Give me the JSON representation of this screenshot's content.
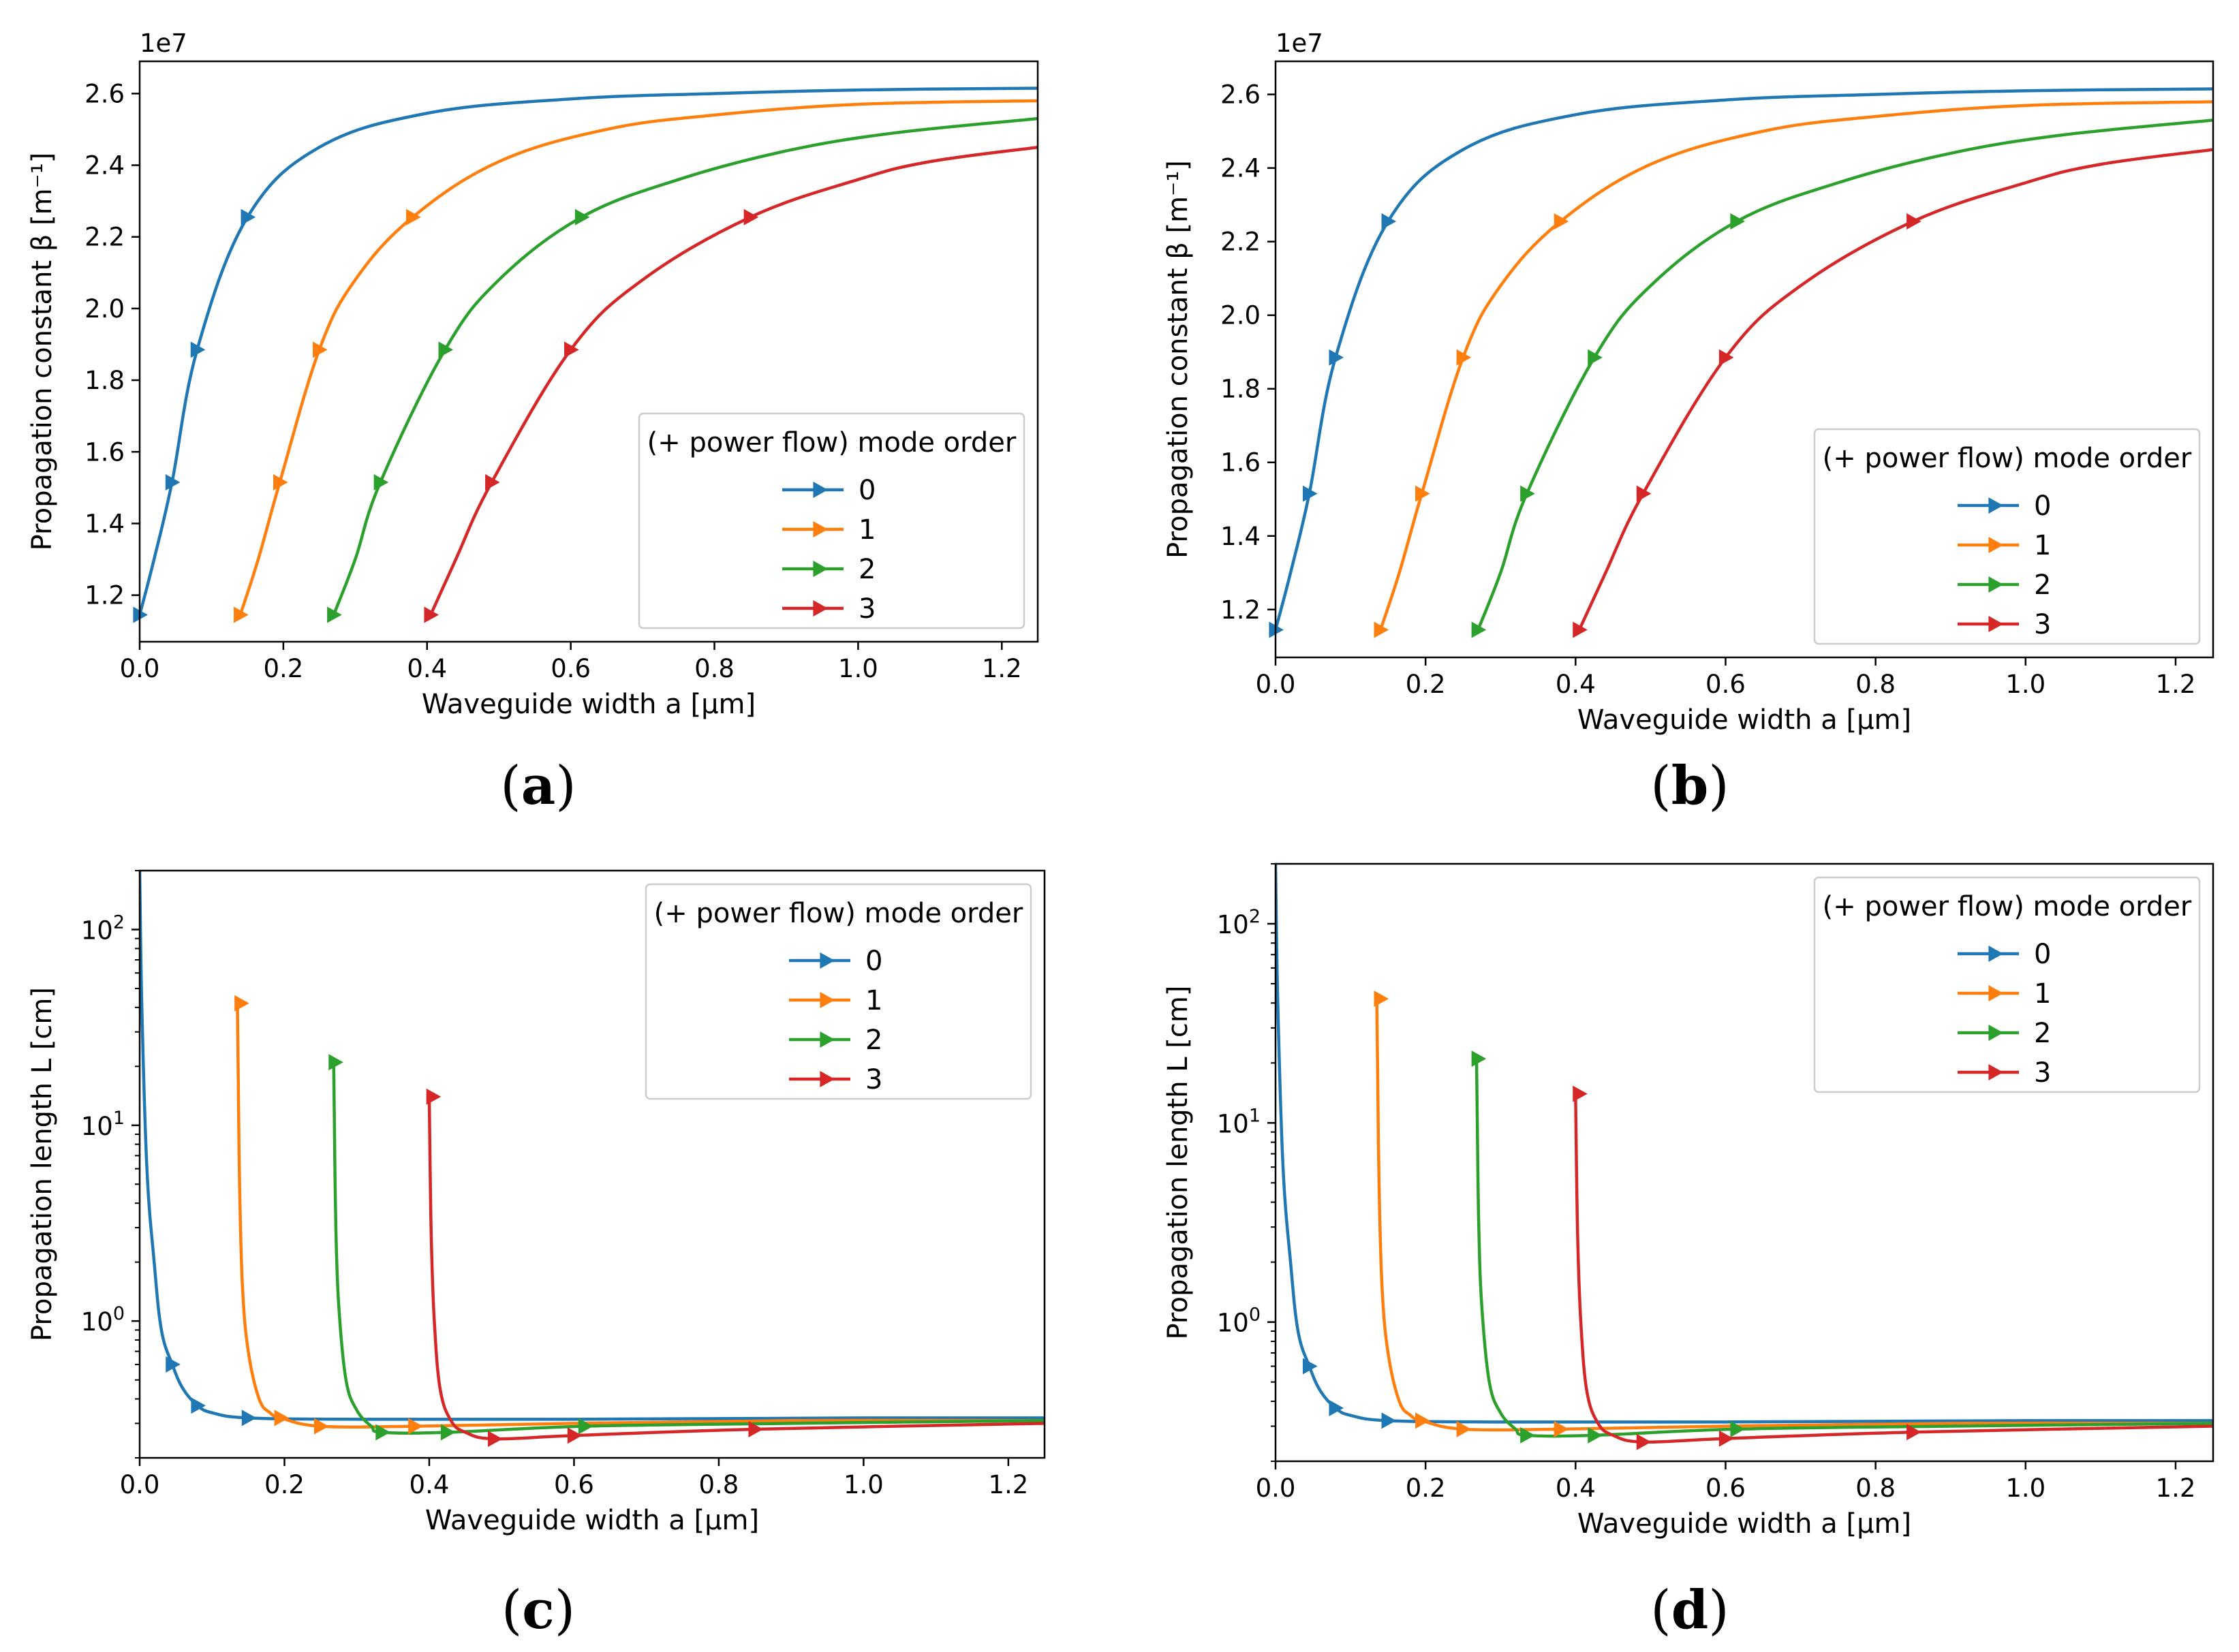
{
  "figure": {
    "panel_labels": [
      "(a)",
      "(b)",
      "(c)",
      "(d)"
    ],
    "colors": {
      "mode_0": "#1f77b4",
      "mode_1": "#ff7f0e",
      "mode_2": "#2ca02c",
      "mode_3": "#d62728"
    }
  },
  "chart_data": [
    {
      "panel": "(a)",
      "type": "line",
      "title": "",
      "xlabel": "Waveguide width a [μm]",
      "ylabel": "Propagation constant β [m⁻¹]",
      "y_offset_label": "1e7",
      "yscale": "linear",
      "xlim": [
        0.0,
        1.25
      ],
      "ylim": [
        1.07,
        2.69
      ],
      "xticks": [
        "0.0",
        "0.2",
        "0.4",
        "0.6",
        "0.8",
        "1.0",
        "1.2"
      ],
      "yticks": [
        "1.2",
        "1.4",
        "1.6",
        "1.8",
        "2.0",
        "2.2",
        "2.4",
        "2.6"
      ],
      "legend": {
        "title": "(+ power flow) mode order",
        "entries": [
          "0",
          "1",
          "2",
          "3"
        ],
        "position": "lower-right"
      },
      "series": [
        {
          "name": "0",
          "x": [
            0.0,
            0.02,
            0.045,
            0.08,
            0.15,
            0.25,
            0.4,
            0.6,
            0.8,
            1.0,
            1.25
          ],
          "values": [
            1.145,
            1.3,
            1.515,
            1.885,
            2.255,
            2.45,
            2.545,
            2.585,
            2.6,
            2.61,
            2.615
          ]
        },
        {
          "name": "1",
          "x": [
            0.14,
            0.165,
            0.195,
            0.25,
            0.3,
            0.38,
            0.5,
            0.65,
            0.8,
            1.0,
            1.25
          ],
          "values": [
            1.145,
            1.3,
            1.515,
            1.885,
            2.08,
            2.255,
            2.41,
            2.5,
            2.54,
            2.57,
            2.58
          ]
        },
        {
          "name": "2",
          "x": [
            0.27,
            0.3,
            0.335,
            0.425,
            0.5,
            0.615,
            0.75,
            0.9,
            1.05,
            1.25
          ],
          "values": [
            1.145,
            1.3,
            1.515,
            1.885,
            2.08,
            2.255,
            2.36,
            2.44,
            2.49,
            2.53
          ]
        },
        {
          "name": "3",
          "x": [
            0.405,
            0.44,
            0.49,
            0.6,
            0.7,
            0.85,
            1.0,
            1.1,
            1.25
          ],
          "values": [
            1.145,
            1.3,
            1.515,
            1.885,
            2.08,
            2.255,
            2.36,
            2.41,
            2.45
          ]
        }
      ],
      "markers": [
        {
          "name": "0",
          "x": [
            0.0,
            0.045,
            0.08,
            0.15
          ],
          "values": [
            1.145,
            1.515,
            1.885,
            2.255
          ]
        },
        {
          "name": "1",
          "x": [
            0.14,
            0.195,
            0.25,
            0.38
          ],
          "values": [
            1.145,
            1.515,
            1.885,
            2.255
          ]
        },
        {
          "name": "2",
          "x": [
            0.27,
            0.335,
            0.425,
            0.615
          ],
          "values": [
            1.145,
            1.515,
            1.885,
            2.255
          ]
        },
        {
          "name": "3",
          "x": [
            0.405,
            0.49,
            0.6,
            0.85
          ],
          "values": [
            1.145,
            1.515,
            1.885,
            2.255
          ]
        }
      ]
    },
    {
      "panel": "(b)",
      "type": "line",
      "title": "",
      "xlabel": "Waveguide width a [μm]",
      "ylabel": "Propagation constant β [m⁻¹]",
      "y_offset_label": "1e7",
      "yscale": "linear",
      "xlim": [
        0.0,
        1.25
      ],
      "ylim": [
        1.07,
        2.69
      ],
      "xticks": [
        "0.0",
        "0.2",
        "0.4",
        "0.6",
        "0.8",
        "1.0",
        "1.2"
      ],
      "yticks": [
        "1.2",
        "1.4",
        "1.6",
        "1.8",
        "2.0",
        "2.2",
        "2.4",
        "2.6"
      ],
      "legend": {
        "title": "(+ power flow) mode order",
        "entries": [
          "0",
          "1",
          "2",
          "3"
        ],
        "position": "lower-right"
      },
      "series": [
        {
          "name": "0",
          "x": [
            0.0,
            0.02,
            0.045,
            0.08,
            0.15,
            0.25,
            0.4,
            0.6,
            0.8,
            1.0,
            1.25
          ],
          "values": [
            1.145,
            1.3,
            1.515,
            1.885,
            2.255,
            2.45,
            2.545,
            2.585,
            2.6,
            2.61,
            2.615
          ]
        },
        {
          "name": "1",
          "x": [
            0.14,
            0.165,
            0.195,
            0.25,
            0.3,
            0.38,
            0.5,
            0.65,
            0.8,
            1.0,
            1.25
          ],
          "values": [
            1.145,
            1.3,
            1.515,
            1.885,
            2.08,
            2.255,
            2.41,
            2.5,
            2.54,
            2.57,
            2.58
          ]
        },
        {
          "name": "2",
          "x": [
            0.27,
            0.3,
            0.335,
            0.425,
            0.5,
            0.615,
            0.75,
            0.9,
            1.05,
            1.25
          ],
          "values": [
            1.145,
            1.3,
            1.515,
            1.885,
            2.08,
            2.255,
            2.36,
            2.44,
            2.49,
            2.53
          ]
        },
        {
          "name": "3",
          "x": [
            0.405,
            0.44,
            0.49,
            0.6,
            0.7,
            0.85,
            1.0,
            1.1,
            1.25
          ],
          "values": [
            1.145,
            1.3,
            1.515,
            1.885,
            2.08,
            2.255,
            2.36,
            2.41,
            2.45
          ]
        }
      ],
      "markers": [
        {
          "name": "0",
          "x": [
            0.0,
            0.045,
            0.08,
            0.15
          ],
          "values": [
            1.145,
            1.515,
            1.885,
            2.255
          ]
        },
        {
          "name": "1",
          "x": [
            0.14,
            0.195,
            0.25,
            0.38
          ],
          "values": [
            1.145,
            1.515,
            1.885,
            2.255
          ]
        },
        {
          "name": "2",
          "x": [
            0.27,
            0.335,
            0.425,
            0.615
          ],
          "values": [
            1.145,
            1.515,
            1.885,
            2.255
          ]
        },
        {
          "name": "3",
          "x": [
            0.405,
            0.49,
            0.6,
            0.85
          ],
          "values": [
            1.145,
            1.515,
            1.885,
            2.255
          ]
        }
      ]
    },
    {
      "panel": "(c)",
      "type": "line",
      "title": "",
      "xlabel": "Waveguide width a [μm]",
      "ylabel": "Propagation length L [cm]",
      "yscale": "log",
      "xlim": [
        0.0,
        1.25
      ],
      "ylim": [
        0.2,
        200
      ],
      "xticks": [
        "0.0",
        "0.2",
        "0.4",
        "0.6",
        "0.8",
        "1.0",
        "1.2"
      ],
      "yticks_log": [
        0,
        1,
        2
      ],
      "yticks_base": "10",
      "legend": {
        "title": "(+ power flow) mode order",
        "entries": [
          "0",
          "1",
          "2",
          "3"
        ],
        "position": "upper-right"
      },
      "series": [
        {
          "name": "0",
          "x": [
            0.0,
            0.003,
            0.01,
            0.02,
            0.03,
            0.045,
            0.06,
            0.08,
            0.1,
            0.15,
            0.3,
            0.6,
            1.0,
            1.25
          ],
          "values": [
            200,
            40,
            6,
            2,
            0.9,
            0.6,
            0.45,
            0.37,
            0.34,
            0.32,
            0.315,
            0.315,
            0.32,
            0.32
          ]
        },
        {
          "name": "1",
          "x": [
            0.135,
            0.136,
            0.138,
            0.142,
            0.15,
            0.165,
            0.18,
            0.195,
            0.25,
            0.38,
            0.6,
            0.9,
            1.25
          ],
          "values": [
            42,
            20,
            5,
            1.5,
            0.7,
            0.4,
            0.34,
            0.32,
            0.29,
            0.29,
            0.3,
            0.31,
            0.31
          ]
        },
        {
          "name": "2",
          "x": [
            0.268,
            0.269,
            0.271,
            0.275,
            0.285,
            0.3,
            0.32,
            0.335,
            0.425,
            0.615,
            0.9,
            1.25
          ],
          "values": [
            21,
            10,
            3,
            1.2,
            0.5,
            0.35,
            0.29,
            0.27,
            0.27,
            0.29,
            0.3,
            0.31
          ]
        },
        {
          "name": "3",
          "x": [
            0.4,
            0.401,
            0.403,
            0.407,
            0.415,
            0.43,
            0.45,
            0.49,
            0.6,
            0.85,
            1.25
          ],
          "values": [
            14,
            7,
            2.5,
            1,
            0.45,
            0.31,
            0.27,
            0.25,
            0.26,
            0.28,
            0.3
          ]
        }
      ],
      "markers": [
        {
          "name": "0",
          "x": [
            0.045,
            0.08,
            0.15
          ],
          "values": [
            0.6,
            0.37,
            0.32
          ]
        },
        {
          "name": "1",
          "x": [
            0.14,
            0.195,
            0.25,
            0.38
          ],
          "values": [
            42,
            0.32,
            0.29,
            0.29
          ]
        },
        {
          "name": "2",
          "x": [
            0.27,
            0.335,
            0.425,
            0.615
          ],
          "values": [
            21,
            0.27,
            0.27,
            0.29
          ]
        },
        {
          "name": "3",
          "x": [
            0.405,
            0.49,
            0.6,
            0.85
          ],
          "values": [
            14,
            0.25,
            0.26,
            0.28
          ]
        }
      ]
    },
    {
      "panel": "(d)",
      "type": "line",
      "title": "",
      "xlabel": "Waveguide width a [μm]",
      "ylabel": "Propagation length L [cm]",
      "yscale": "log",
      "xlim": [
        0.0,
        1.25
      ],
      "ylim": [
        0.2,
        200
      ],
      "xticks": [
        "0.0",
        "0.2",
        "0.4",
        "0.6",
        "0.8",
        "1.0",
        "1.2"
      ],
      "yticks_log": [
        0,
        1,
        2
      ],
      "yticks_base": "10",
      "legend": {
        "title": "(+ power flow) mode order",
        "entries": [
          "0",
          "1",
          "2",
          "3"
        ],
        "position": "upper-right"
      },
      "series": [
        {
          "name": "0",
          "x": [
            0.0,
            0.003,
            0.01,
            0.02,
            0.03,
            0.045,
            0.06,
            0.08,
            0.1,
            0.15,
            0.3,
            0.6,
            1.0,
            1.25
          ],
          "values": [
            200,
            40,
            6,
            2,
            0.9,
            0.6,
            0.45,
            0.37,
            0.34,
            0.32,
            0.315,
            0.315,
            0.32,
            0.32
          ]
        },
        {
          "name": "1",
          "x": [
            0.135,
            0.136,
            0.138,
            0.142,
            0.15,
            0.165,
            0.18,
            0.195,
            0.25,
            0.38,
            0.6,
            0.9,
            1.25
          ],
          "values": [
            42,
            20,
            5,
            1.5,
            0.7,
            0.4,
            0.34,
            0.32,
            0.29,
            0.29,
            0.3,
            0.31,
            0.31
          ]
        },
        {
          "name": "2",
          "x": [
            0.268,
            0.269,
            0.271,
            0.275,
            0.285,
            0.3,
            0.32,
            0.335,
            0.425,
            0.615,
            0.9,
            1.25
          ],
          "values": [
            21,
            10,
            3,
            1.2,
            0.5,
            0.35,
            0.29,
            0.27,
            0.27,
            0.29,
            0.3,
            0.31
          ]
        },
        {
          "name": "3",
          "x": [
            0.4,
            0.401,
            0.403,
            0.407,
            0.415,
            0.43,
            0.45,
            0.49,
            0.6,
            0.85,
            1.25
          ],
          "values": [
            14,
            7,
            2.5,
            1,
            0.45,
            0.31,
            0.27,
            0.25,
            0.26,
            0.28,
            0.3
          ]
        }
      ],
      "markers": [
        {
          "name": "0",
          "x": [
            0.045,
            0.08,
            0.15
          ],
          "values": [
            0.6,
            0.37,
            0.32
          ]
        },
        {
          "name": "1",
          "x": [
            0.14,
            0.195,
            0.25,
            0.38
          ],
          "values": [
            42,
            0.32,
            0.29,
            0.29
          ]
        },
        {
          "name": "2",
          "x": [
            0.27,
            0.335,
            0.425,
            0.615
          ],
          "values": [
            21,
            0.27,
            0.27,
            0.29
          ]
        },
        {
          "name": "3",
          "x": [
            0.405,
            0.49,
            0.6,
            0.85
          ],
          "values": [
            14,
            0.25,
            0.26,
            0.28
          ]
        }
      ]
    }
  ]
}
